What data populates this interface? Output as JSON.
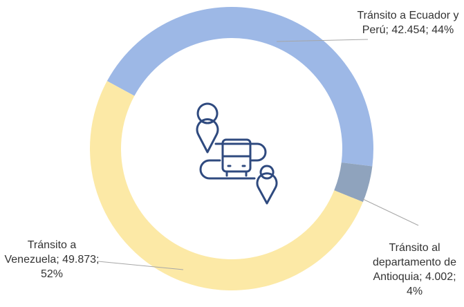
{
  "chart_data": {
    "type": "donut",
    "categories": [
      "Tránsito a Ecuador y Perú",
      "Tránsito al departamento de Antioquia",
      "Tránsito a Venezuela"
    ],
    "values": [
      42454,
      4002,
      49873
    ],
    "value_labels": [
      "42.454",
      "4.002",
      "49.873"
    ],
    "percentages": [
      44,
      4,
      52
    ],
    "percent_labels": [
      "44%",
      "4%",
      "52%"
    ],
    "colors": [
      "#9db8e6",
      "#8fa3bd",
      "#fce9a6"
    ]
  }
}
